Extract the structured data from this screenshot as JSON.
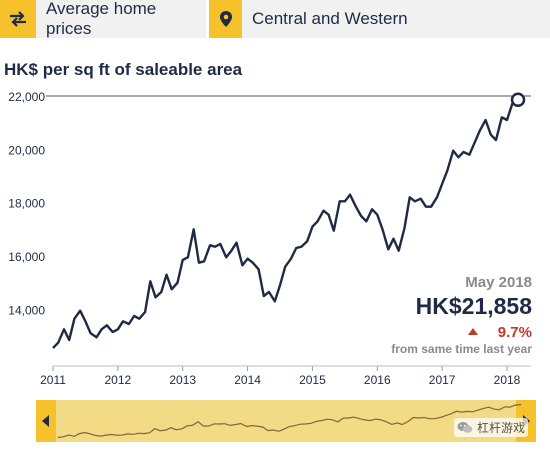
{
  "header": {
    "metric_label": "Average home prices",
    "district_label": "Central and Western",
    "swap_icon": "swap-arrows-icon",
    "location_icon": "location-pin-icon"
  },
  "chart_data": {
    "type": "line",
    "title": "HK$ per sq ft of saleable area",
    "ylim": [
      12400,
      22000
    ],
    "y_ticks": [
      14000,
      16000,
      18000,
      20000,
      22000
    ],
    "y_tick_labels": [
      "14,000",
      "16,000",
      "18,000",
      "20,000",
      "22,000"
    ],
    "x_range": [
      2011.0,
      2018.37
    ],
    "x_ticks": [
      2011,
      2012,
      2013,
      2014,
      2015,
      2016,
      2017,
      2018
    ],
    "x_tick_labels": [
      "2011",
      "2012",
      "2013",
      "2014",
      "2015",
      "2016",
      "2017",
      "2018"
    ],
    "grid": "none",
    "series": [
      {
        "points": [
          [
            2011.0,
            12550
          ],
          [
            2011.08,
            12750
          ],
          [
            2011.17,
            13250
          ],
          [
            2011.25,
            12850
          ],
          [
            2011.33,
            13650
          ],
          [
            2011.42,
            13950
          ],
          [
            2011.5,
            13550
          ],
          [
            2011.58,
            13100
          ],
          [
            2011.67,
            12950
          ],
          [
            2011.75,
            13250
          ],
          [
            2011.83,
            13400
          ],
          [
            2011.92,
            13150
          ],
          [
            2012.0,
            13250
          ],
          [
            2012.08,
            13550
          ],
          [
            2012.17,
            13450
          ],
          [
            2012.25,
            13750
          ],
          [
            2012.33,
            13650
          ],
          [
            2012.42,
            13900
          ],
          [
            2012.5,
            15050
          ],
          [
            2012.58,
            14450
          ],
          [
            2012.67,
            14650
          ],
          [
            2012.75,
            15300
          ],
          [
            2012.83,
            14750
          ],
          [
            2012.92,
            15000
          ],
          [
            2013.0,
            15850
          ],
          [
            2013.08,
            15950
          ],
          [
            2013.17,
            17000
          ],
          [
            2013.25,
            15750
          ],
          [
            2013.33,
            15800
          ],
          [
            2013.42,
            16400
          ],
          [
            2013.5,
            16350
          ],
          [
            2013.58,
            16450
          ],
          [
            2013.67,
            15950
          ],
          [
            2013.75,
            16200
          ],
          [
            2013.83,
            16500
          ],
          [
            2013.92,
            15650
          ],
          [
            2014.0,
            15900
          ],
          [
            2014.08,
            15750
          ],
          [
            2014.17,
            15500
          ],
          [
            2014.25,
            14500
          ],
          [
            2014.33,
            14650
          ],
          [
            2014.42,
            14300
          ],
          [
            2014.5,
            14900
          ],
          [
            2014.58,
            15600
          ],
          [
            2014.67,
            15900
          ],
          [
            2014.75,
            16300
          ],
          [
            2014.83,
            16350
          ],
          [
            2014.92,
            16550
          ],
          [
            2015.0,
            17100
          ],
          [
            2015.08,
            17300
          ],
          [
            2015.17,
            17700
          ],
          [
            2015.25,
            17550
          ],
          [
            2015.33,
            16950
          ],
          [
            2015.42,
            18050
          ],
          [
            2015.5,
            18050
          ],
          [
            2015.58,
            18300
          ],
          [
            2015.67,
            17850
          ],
          [
            2015.75,
            17500
          ],
          [
            2015.83,
            17300
          ],
          [
            2015.92,
            17750
          ],
          [
            2016.0,
            17550
          ],
          [
            2016.08,
            17000
          ],
          [
            2016.17,
            16250
          ],
          [
            2016.25,
            16650
          ],
          [
            2016.33,
            16200
          ],
          [
            2016.42,
            17050
          ],
          [
            2016.5,
            18200
          ],
          [
            2016.58,
            18050
          ],
          [
            2016.67,
            18150
          ],
          [
            2016.75,
            17850
          ],
          [
            2016.83,
            17850
          ],
          [
            2016.92,
            18200
          ],
          [
            2017.0,
            18700
          ],
          [
            2017.08,
            19200
          ],
          [
            2017.17,
            19950
          ],
          [
            2017.25,
            19700
          ],
          [
            2017.33,
            19900
          ],
          [
            2017.42,
            19800
          ],
          [
            2017.5,
            20250
          ],
          [
            2017.58,
            20700
          ],
          [
            2017.67,
            21100
          ],
          [
            2017.75,
            20550
          ],
          [
            2017.83,
            20350
          ],
          [
            2017.92,
            21200
          ],
          [
            2018.0,
            21100
          ],
          [
            2018.08,
            21700
          ],
          [
            2018.17,
            21858
          ]
        ]
      }
    ],
    "highlight": {
      "date_label": "May 2018",
      "value_label": "HK$21,858",
      "change_label": "9.7%",
      "change_direction": "up",
      "caption": "from same time last year"
    },
    "colors": {
      "line": "#1f2a44",
      "accent": "#f6c22c",
      "navigator_fill": "#f3da84",
      "change_up": "#c0392b"
    }
  },
  "navigator": {
    "left_arrow_icon": "chevron-left-icon",
    "right_arrow_icon": "chevron-right-icon"
  },
  "watermark": {
    "text": "杠杆游戏",
    "icon": "wechat-icon"
  }
}
